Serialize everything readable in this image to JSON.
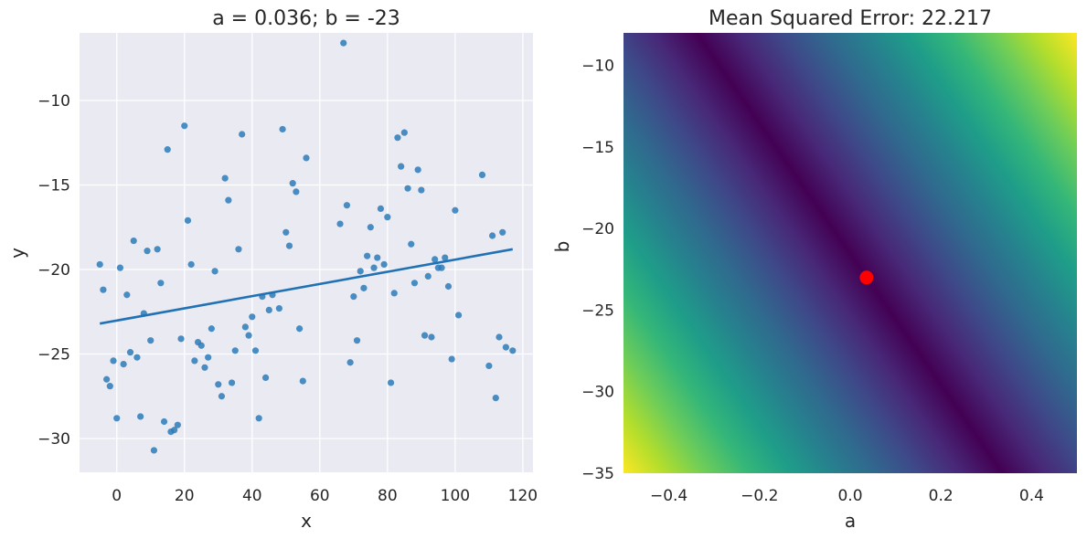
{
  "chart_data": [
    {
      "type": "scatter",
      "title": "a = 0.036; b = -23",
      "xlabel": "x",
      "ylabel": "y",
      "xlim": [
        -11,
        123
      ],
      "ylim": [
        -32,
        -6
      ],
      "xticks": [
        0,
        20,
        40,
        60,
        80,
        100,
        120
      ],
      "yticks": [
        -30,
        -25,
        -20,
        -15,
        -10
      ],
      "grid": true,
      "point_color": "#2b7bba",
      "line_color": "#2171b5",
      "background": "#eaeaf2",
      "series": [
        {
          "name": "observations",
          "x": [
            -5,
            -4,
            -3,
            -2,
            -1,
            0,
            1,
            2,
            3,
            4,
            5,
            6,
            7,
            8,
            9,
            10,
            11,
            12,
            13,
            14,
            15,
            16,
            17,
            18,
            19,
            20,
            21,
            22,
            23,
            24,
            25,
            26,
            27,
            28,
            29,
            30,
            31,
            32,
            33,
            34,
            35,
            36,
            37,
            38,
            39,
            40,
            41,
            42,
            43,
            44,
            45,
            46,
            48,
            49,
            50,
            51,
            52,
            53,
            54,
            55,
            56,
            66,
            67,
            68,
            69,
            70,
            71,
            72,
            73,
            74,
            75,
            76,
            77,
            78,
            79,
            80,
            81,
            82,
            83,
            84,
            85,
            86,
            87,
            88,
            89,
            90,
            91,
            92,
            93,
            94,
            95,
            96,
            97,
            98,
            99,
            100,
            101,
            108,
            110,
            111,
            112,
            113,
            114,
            115,
            117
          ],
          "y": [
            -19.7,
            -21.2,
            -26.5,
            -26.9,
            -25.4,
            -28.8,
            -19.9,
            -25.6,
            -21.5,
            -24.9,
            -18.3,
            -25.2,
            -28.7,
            -22.6,
            -18.9,
            -24.2,
            -30.7,
            -18.8,
            -20.8,
            -29.0,
            -12.9,
            -29.6,
            -29.5,
            -29.2,
            -24.1,
            -11.5,
            -17.1,
            -19.7,
            -25.4,
            -24.3,
            -24.5,
            -25.8,
            -25.2,
            -23.5,
            -20.1,
            -26.8,
            -27.5,
            -14.6,
            -15.9,
            -26.7,
            -24.8,
            -18.8,
            -12.0,
            -23.4,
            -23.9,
            -22.8,
            -24.8,
            -28.8,
            -21.6,
            -26.4,
            -22.4,
            -21.5,
            -22.3,
            -11.7,
            -17.8,
            -18.6,
            -14.9,
            -15.4,
            -23.5,
            -26.6,
            -13.4,
            -17.3,
            -6.6,
            -16.2,
            -25.5,
            -21.6,
            -24.2,
            -20.1,
            -21.1,
            -19.2,
            -17.5,
            -19.9,
            -19.3,
            -16.4,
            -19.7,
            -16.9,
            -26.7,
            -21.4,
            -12.2,
            -13.9,
            -11.9,
            -15.2,
            -18.5,
            -20.8,
            -14.1,
            -15.3,
            -23.9,
            -20.4,
            -24.0,
            -19.4,
            -19.9,
            -19.9,
            -19.3,
            -21.0,
            -25.3,
            -16.5,
            -22.7,
            -14.4,
            -25.7,
            -18.0,
            -27.6,
            -24.0,
            -17.8,
            -24.6,
            -24.8
          ]
        },
        {
          "name": "fit",
          "x": [
            -5,
            117
          ],
          "y": [
            -23.2,
            -18.8
          ]
        }
      ]
    },
    {
      "type": "heatmap",
      "title": "Mean Squared Error: 22.217",
      "xlabel": "a",
      "ylabel": "b",
      "xlim": [
        -0.5,
        0.5
      ],
      "ylim": [
        -35,
        -8
      ],
      "xticks": [
        -0.4,
        -0.2,
        0.0,
        0.2,
        0.4
      ],
      "xtick_labels": [
        "−0.4",
        "−0.2",
        "0.0",
        "0.2",
        "0.4"
      ],
      "yticks": [
        -35,
        -30,
        -25,
        -20,
        -15,
        -10
      ],
      "colormap": "viridis",
      "marker": {
        "a": 0.036,
        "b": -23,
        "color": "#ff0000"
      }
    }
  ]
}
